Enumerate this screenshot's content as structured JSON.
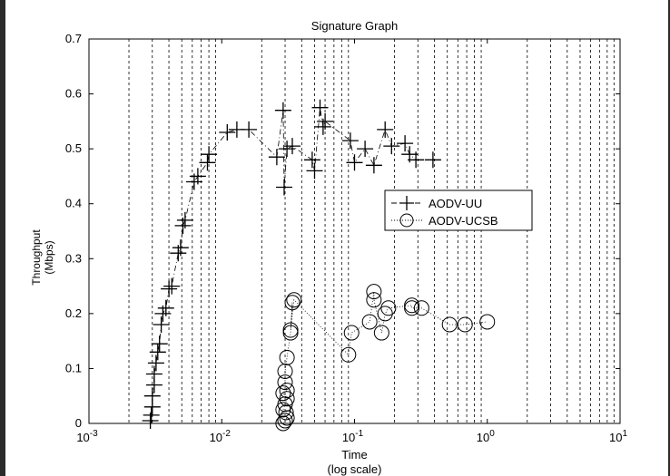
{
  "chart_data": {
    "type": "line",
    "title": "Signature Graph",
    "xlabel": "Time",
    "xlabel_note": "(log scale)",
    "ylabel": "Throughput",
    "ylabel_unit": "(Mbps)",
    "x_scale": "log",
    "xlim": [
      0.001,
      10
    ],
    "ylim": [
      0,
      0.7
    ],
    "x_ticks": [
      {
        "value": 0.001,
        "base": "10",
        "exp": "-3"
      },
      {
        "value": 0.01,
        "base": "10",
        "exp": "-2"
      },
      {
        "value": 0.1,
        "base": "10",
        "exp": "-1"
      },
      {
        "value": 1,
        "base": "10",
        "exp": "0"
      },
      {
        "value": 10,
        "base": "10",
        "exp": "1"
      }
    ],
    "y_ticks": [
      {
        "value": 0,
        "label": "0"
      },
      {
        "value": 0.1,
        "label": "0.1"
      },
      {
        "value": 0.2,
        "label": "0.2"
      },
      {
        "value": 0.3,
        "label": "0.3"
      },
      {
        "value": 0.4,
        "label": "0.4"
      },
      {
        "value": 0.5,
        "label": "0.5"
      },
      {
        "value": 0.6,
        "label": "0.6"
      },
      {
        "value": 0.7,
        "label": "0.7"
      }
    ],
    "vertical_grid_times": [
      0.002,
      0.003,
      0.004,
      0.005,
      0.006,
      0.007,
      0.008,
      0.009,
      0.02,
      0.03,
      0.04,
      0.05,
      0.06,
      0.07,
      0.08,
      0.09,
      0.2,
      0.3,
      0.4,
      0.5,
      0.6,
      0.7,
      0.8,
      0.9,
      2,
      3,
      4,
      5,
      6,
      7,
      8,
      9
    ],
    "horizontal_grid": false,
    "legend_position": "right-middle",
    "series": [
      {
        "name": "AODV-UU",
        "marker": "plus",
        "line": "dash-dot",
        "color": "#000000",
        "x": [
          0.0029,
          0.00295,
          0.003,
          0.003,
          0.0031,
          0.0031,
          0.0032,
          0.0033,
          0.0034,
          0.0035,
          0.0036,
          0.0038,
          0.004,
          0.0042,
          0.0047,
          0.0049,
          0.0051,
          0.0053,
          0.0062,
          0.0066,
          0.0078,
          0.008,
          0.011,
          0.013,
          0.016,
          0.026,
          0.029,
          0.0295,
          0.031,
          0.034,
          0.048,
          0.05,
          0.055,
          0.058,
          0.06,
          0.093,
          0.1,
          0.12,
          0.14,
          0.17,
          0.19,
          0.24,
          0.26,
          0.29,
          0.39
        ],
        "y": [
          0.005,
          0.015,
          0.03,
          0.05,
          0.07,
          0.09,
          0.11,
          0.13,
          0.145,
          0.18,
          0.2,
          0.21,
          0.245,
          0.25,
          0.31,
          0.32,
          0.36,
          0.37,
          0.44,
          0.45,
          0.475,
          0.49,
          0.53,
          0.535,
          0.535,
          0.485,
          0.57,
          0.43,
          0.5,
          0.505,
          0.48,
          0.46,
          0.575,
          0.54,
          0.55,
          0.515,
          0.475,
          0.5,
          0.47,
          0.535,
          0.505,
          0.51,
          0.49,
          0.48,
          0.48
        ]
      },
      {
        "name": "AODV-UCSB",
        "marker": "circle",
        "line": "dotted",
        "color": "#000000",
        "x": [
          0.029,
          0.03,
          0.031,
          0.0305,
          0.029,
          0.03,
          0.031,
          0.029,
          0.031,
          0.03,
          0.03,
          0.031,
          0.033,
          0.034,
          0.033,
          0.035,
          0.09,
          0.095,
          0.13,
          0.14,
          0.14,
          0.16,
          0.17,
          0.18,
          0.27,
          0.27,
          0.32,
          0.52,
          0.68,
          1.0
        ],
        "y": [
          0.0,
          0.005,
          0.01,
          0.02,
          0.025,
          0.035,
          0.045,
          0.055,
          0.06,
          0.075,
          0.095,
          0.12,
          0.165,
          0.22,
          0.17,
          0.225,
          0.125,
          0.165,
          0.185,
          0.24,
          0.225,
          0.165,
          0.2,
          0.21,
          0.215,
          0.21,
          0.21,
          0.18,
          0.18,
          0.185
        ]
      }
    ]
  }
}
